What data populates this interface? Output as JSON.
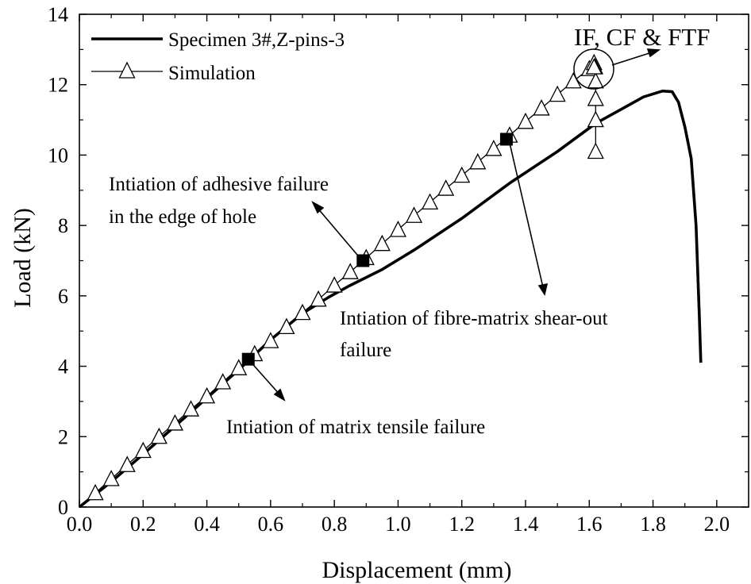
{
  "chart_data": {
    "type": "line",
    "xlabel": "Displacement (mm)",
    "ylabel": "Load (kN)",
    "xlim": [
      0.0,
      2.1
    ],
    "ylim": [
      0,
      14
    ],
    "x_ticks": [
      "0.0",
      "0.2",
      "0.4",
      "0.6",
      "0.8",
      "1.0",
      "1.2",
      "1.4",
      "1.6",
      "1.8",
      "2.0"
    ],
    "y_ticks": [
      "0",
      "2",
      "4",
      "6",
      "8",
      "10",
      "12",
      "14"
    ],
    "grid": false,
    "legend": {
      "position": "top-left",
      "entries": [
        "Specimen 3#,Z-pins-3",
        "Simulation"
      ]
    },
    "series": [
      {
        "name": "Specimen 3#,Z-pins-3",
        "style": "solid-thick",
        "color": "#000000",
        "x": [
          0.0,
          0.1,
          0.2,
          0.3,
          0.4,
          0.5,
          0.6,
          0.7,
          0.78,
          0.85,
          0.95,
          1.05,
          1.2,
          1.35,
          1.5,
          1.62,
          1.7,
          1.77,
          1.83,
          1.86,
          1.88,
          1.9,
          1.92,
          1.935,
          1.945,
          1.95
        ],
        "y": [
          0.0,
          0.72,
          1.5,
          2.3,
          3.1,
          3.9,
          4.75,
          5.5,
          5.95,
          6.3,
          6.75,
          7.3,
          8.2,
          9.2,
          10.1,
          10.9,
          11.3,
          11.65,
          11.82,
          11.8,
          11.5,
          10.8,
          9.9,
          8.0,
          5.5,
          4.1
        ]
      },
      {
        "name": "Simulation",
        "style": "line-with-open-triangles",
        "color": "#000000",
        "x": [
          0.0,
          0.05,
          0.1,
          0.15,
          0.2,
          0.25,
          0.3,
          0.35,
          0.4,
          0.45,
          0.5,
          0.55,
          0.6,
          0.65,
          0.7,
          0.75,
          0.8,
          0.85,
          0.9,
          0.95,
          1.0,
          1.05,
          1.1,
          1.15,
          1.2,
          1.25,
          1.3,
          1.35,
          1.4,
          1.45,
          1.5,
          1.55,
          1.6,
          1.615,
          1.618,
          1.62,
          1.62,
          1.62,
          1.62,
          1.615
        ],
        "y": [
          0.0,
          0.4,
          0.8,
          1.2,
          1.6,
          2.0,
          2.38,
          2.78,
          3.15,
          3.55,
          3.95,
          4.35,
          4.72,
          5.12,
          5.52,
          5.9,
          6.3,
          6.68,
          7.08,
          7.48,
          7.88,
          8.28,
          8.66,
          9.05,
          9.42,
          9.8,
          10.18,
          10.56,
          10.95,
          11.33,
          11.72,
          12.1,
          12.45,
          12.62,
          12.5,
          12.1,
          11.6,
          11.0,
          10.1,
          12.5
        ]
      }
    ],
    "markers": [
      {
        "name": "matrix tensile failure",
        "x": 0.53,
        "y": 4.2
      },
      {
        "name": "adhesive failure",
        "x": 0.89,
        "y": 7.0
      },
      {
        "name": "fibre-matrix shear-out",
        "x": 1.34,
        "y": 10.45
      }
    ],
    "annotations": {
      "adhesive_line1": "Intiation of adhesive failure",
      "adhesive_line2": "in the edge of hole",
      "fibre_line1": "Intiation of fibre-matrix shear-out",
      "fibre_line2": "failure",
      "matrix": "Intiation of matrix tensile failure",
      "callout": "IF, CF & FTF"
    }
  }
}
